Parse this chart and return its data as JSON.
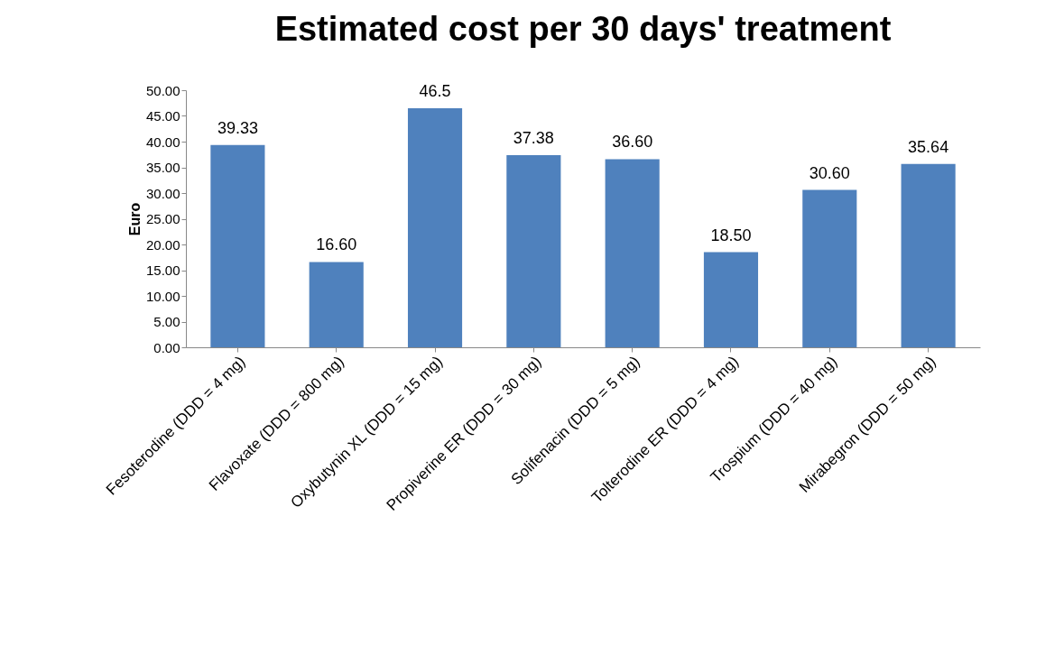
{
  "chart_data": {
    "type": "bar",
    "title": "Estimated cost per 30 days' treatment",
    "ylabel": "Euro",
    "categories": [
      "Fesoterodine (DDD = 4 mg)",
      "Flavoxate (DDD = 800 mg)",
      "Oxybutynin XL (DDD = 15 mg)",
      "Propiverine ER (DDD = 30 mg)",
      "Solifenacin (DDD = 5 mg)",
      "Tolterodine ER (DDD = 4 mg)",
      "Trospium (DDD =  40 mg)",
      "Mirabegron (DDD = 50 mg)"
    ],
    "values": [
      39.33,
      16.6,
      46.5,
      37.38,
      36.6,
      18.5,
      30.6,
      35.64
    ],
    "value_labels": [
      "39.33",
      "16.60",
      "46.5",
      "37.38",
      "36.60",
      "18.50",
      "30.60",
      "35.64"
    ],
    "color": "#4f81bd",
    "ylim": [
      0,
      50
    ],
    "yticks": [
      {
        "value": 0,
        "label": "0.00"
      },
      {
        "value": 5,
        "label": "5.00"
      },
      {
        "value": 10,
        "label": "10.00"
      },
      {
        "value": 15,
        "label": "15.00"
      },
      {
        "value": 20,
        "label": "20.00"
      },
      {
        "value": 25,
        "label": "25.00"
      },
      {
        "value": 30,
        "label": "30.00"
      },
      {
        "value": 35,
        "label": "35.00"
      },
      {
        "value": 40,
        "label": "40.00"
      },
      {
        "value": 45,
        "label": "45.00"
      },
      {
        "value": 50,
        "label": "50.00"
      }
    ]
  }
}
